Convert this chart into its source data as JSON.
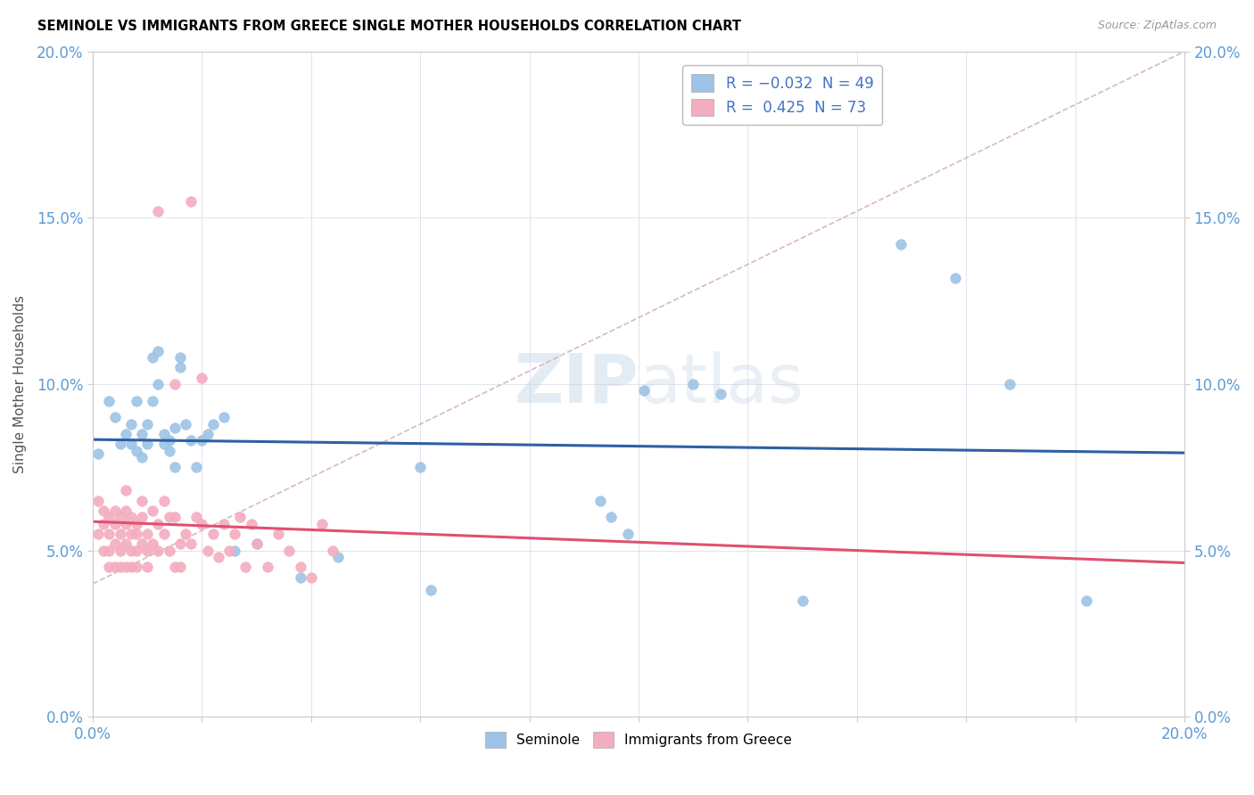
{
  "title": "SEMINOLE VS IMMIGRANTS FROM GREECE SINGLE MOTHER HOUSEHOLDS CORRELATION CHART",
  "source": "Source: ZipAtlas.com",
  "ylabel": "Single Mother Households",
  "xlim": [
    0.0,
    0.2
  ],
  "ylim": [
    0.0,
    0.2
  ],
  "yticks": [
    0.0,
    0.05,
    0.1,
    0.15,
    0.2
  ],
  "xtick_shown": [
    0.0,
    0.2
  ],
  "watermark": "ZIPatlas",
  "seminole_color": "#9dc3e6",
  "greece_color": "#f4acbf",
  "trend_blue": "#2e5fa3",
  "trend_pink": "#e05070",
  "diag_color": "#d8b8c8",
  "legend_color": "#4472c4",
  "seminole_x": [
    0.001,
    0.003,
    0.004,
    0.005,
    0.006,
    0.007,
    0.007,
    0.008,
    0.008,
    0.009,
    0.009,
    0.01,
    0.01,
    0.011,
    0.011,
    0.012,
    0.012,
    0.013,
    0.013,
    0.014,
    0.014,
    0.015,
    0.015,
    0.016,
    0.016,
    0.017,
    0.018,
    0.019,
    0.02,
    0.021,
    0.022,
    0.024,
    0.026,
    0.03,
    0.038,
    0.045,
    0.06,
    0.062,
    0.093,
    0.095,
    0.098,
    0.101,
    0.11,
    0.115,
    0.13,
    0.148,
    0.158,
    0.168,
    0.182
  ],
  "seminole_y": [
    0.079,
    0.095,
    0.09,
    0.082,
    0.085,
    0.088,
    0.082,
    0.08,
    0.095,
    0.085,
    0.078,
    0.088,
    0.082,
    0.095,
    0.108,
    0.11,
    0.1,
    0.082,
    0.085,
    0.08,
    0.083,
    0.087,
    0.075,
    0.105,
    0.108,
    0.088,
    0.083,
    0.075,
    0.083,
    0.085,
    0.088,
    0.09,
    0.05,
    0.052,
    0.042,
    0.048,
    0.075,
    0.038,
    0.065,
    0.06,
    0.055,
    0.098,
    0.1,
    0.097,
    0.035,
    0.142,
    0.132,
    0.1,
    0.035
  ],
  "greece_x": [
    0.001,
    0.001,
    0.002,
    0.002,
    0.002,
    0.003,
    0.003,
    0.003,
    0.003,
    0.004,
    0.004,
    0.004,
    0.004,
    0.005,
    0.005,
    0.005,
    0.005,
    0.006,
    0.006,
    0.006,
    0.006,
    0.006,
    0.007,
    0.007,
    0.007,
    0.007,
    0.008,
    0.008,
    0.008,
    0.008,
    0.009,
    0.009,
    0.009,
    0.01,
    0.01,
    0.01,
    0.011,
    0.011,
    0.012,
    0.012,
    0.013,
    0.013,
    0.014,
    0.014,
    0.015,
    0.015,
    0.016,
    0.016,
    0.017,
    0.018,
    0.019,
    0.02,
    0.021,
    0.022,
    0.023,
    0.024,
    0.025,
    0.026,
    0.027,
    0.028,
    0.029,
    0.03,
    0.032,
    0.034,
    0.036,
    0.038,
    0.04,
    0.042,
    0.044,
    0.02,
    0.015,
    0.012,
    0.018
  ],
  "greece_y": [
    0.065,
    0.055,
    0.062,
    0.058,
    0.05,
    0.06,
    0.055,
    0.05,
    0.045,
    0.062,
    0.058,
    0.052,
    0.045,
    0.06,
    0.055,
    0.05,
    0.045,
    0.068,
    0.062,
    0.058,
    0.052,
    0.045,
    0.06,
    0.055,
    0.05,
    0.045,
    0.058,
    0.055,
    0.05,
    0.045,
    0.065,
    0.06,
    0.052,
    0.055,
    0.05,
    0.045,
    0.062,
    0.052,
    0.058,
    0.05,
    0.065,
    0.055,
    0.06,
    0.05,
    0.045,
    0.06,
    0.045,
    0.052,
    0.055,
    0.052,
    0.06,
    0.058,
    0.05,
    0.055,
    0.048,
    0.058,
    0.05,
    0.055,
    0.06,
    0.045,
    0.058,
    0.052,
    0.045,
    0.055,
    0.05,
    0.045,
    0.042,
    0.058,
    0.05,
    0.102,
    0.1,
    0.152,
    0.155
  ]
}
